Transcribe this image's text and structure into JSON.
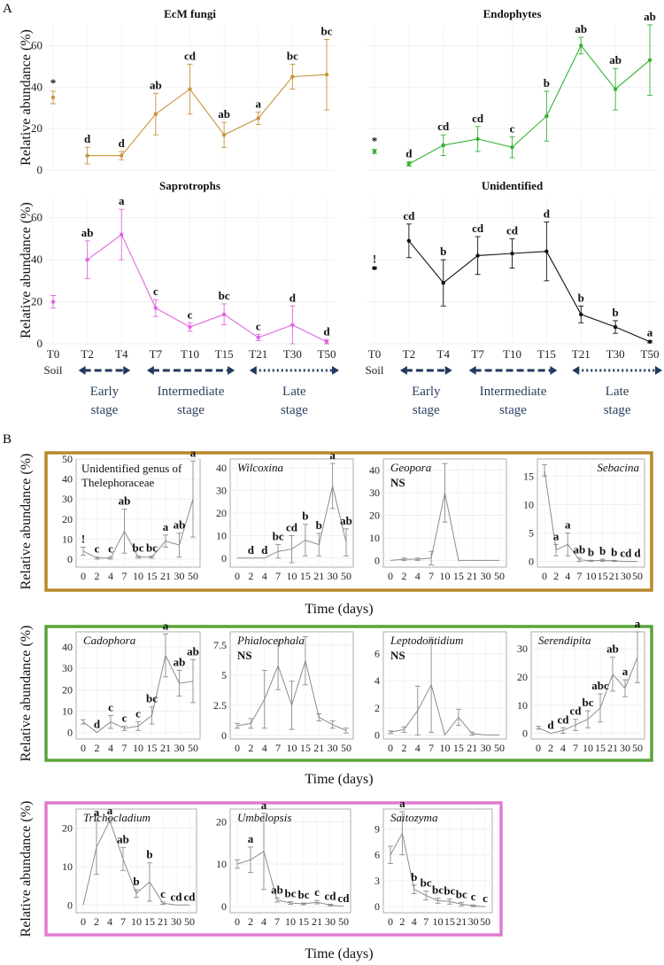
{
  "panel_labels": {
    "a": "A",
    "b": "B"
  },
  "colors": {
    "ecm": "#c8923a",
    "endo": "#33b233",
    "sap": "#e066e0",
    "unid": "#111111",
    "stage_arrow": "#213a5e",
    "box_ecm": "#b8892a",
    "box_endo": "#5aa33a",
    "box_sap": "#e07ad0",
    "gray_line": "#8c8c8c"
  },
  "panel_a": {
    "ylabel": "Relative abundance (%)",
    "x_ticks": [
      "T0",
      "T2",
      "T4",
      "T7",
      "T10",
      "T15",
      "T21",
      "T30",
      "T50"
    ],
    "soil_label": "Soil",
    "stages": [
      {
        "line1": "Early",
        "line2": "stage"
      },
      {
        "line1": "Intermediate",
        "line2": "stage"
      },
      {
        "line1": "Late",
        "line2": "stage"
      }
    ]
  },
  "panel_b": {
    "ylabel": "Relative abundance (%)",
    "xlabel": "Time (days)",
    "x_ticks": [
      "0",
      "2",
      "4",
      "7",
      "10",
      "15",
      "21",
      "30",
      "50"
    ]
  },
  "chart_data": [
    {
      "type": "line",
      "title": "EcM fungi",
      "panel": "A",
      "ylim": [
        0,
        70
      ],
      "yticks": [
        0,
        20,
        40,
        60
      ],
      "categories": [
        "T0",
        "T2",
        "T4",
        "T7",
        "T10",
        "T15",
        "T21",
        "T30",
        "T50"
      ],
      "values": [
        35,
        7,
        7,
        27,
        39,
        17,
        25,
        45,
        46
      ],
      "errors": [
        3,
        4,
        2,
        10,
        12,
        6,
        3,
        6,
        17
      ],
      "labels": [
        "*",
        "d",
        "d",
        "ab",
        "cd",
        "ab",
        "a",
        "bc",
        "bc"
      ]
    },
    {
      "type": "line",
      "title": "Endophytes",
      "panel": "A",
      "ylim": [
        0,
        70
      ],
      "yticks": [
        0,
        20,
        40,
        60
      ],
      "categories": [
        "T0",
        "T2",
        "T4",
        "T7",
        "T10",
        "T15",
        "T21",
        "T30",
        "T50"
      ],
      "values": [
        9,
        3,
        12,
        15,
        11,
        26,
        60,
        39,
        53
      ],
      "errors": [
        1,
        1,
        5,
        6,
        5,
        12,
        4,
        10,
        17
      ],
      "labels": [
        "*",
        "d",
        "cd",
        "cd",
        "c",
        "b",
        "ab",
        "ab",
        "ab"
      ]
    },
    {
      "type": "line",
      "title": "Saprotrophs",
      "panel": "A",
      "ylim": [
        0,
        70
      ],
      "yticks": [
        0,
        20,
        40,
        60
      ],
      "categories": [
        "T0",
        "T2",
        "T4",
        "T7",
        "T10",
        "T15",
        "T21",
        "T30",
        "T50"
      ],
      "values": [
        20,
        40,
        52,
        17,
        8,
        14,
        3,
        9,
        1
      ],
      "errors": [
        3,
        9,
        12,
        4,
        2,
        5,
        1.5,
        9,
        1
      ],
      "labels": [
        "",
        "ab",
        "a",
        "c",
        "c",
        "bc",
        "c",
        "d",
        "d"
      ]
    },
    {
      "type": "line",
      "title": "Unidentified",
      "panel": "A",
      "ylim": [
        0,
        70
      ],
      "yticks": [
        0,
        20,
        40,
        60
      ],
      "categories": [
        "T0",
        "T2",
        "T4",
        "T7",
        "T10",
        "T15",
        "T21",
        "T30",
        "T50"
      ],
      "values": [
        36,
        49,
        29,
        42,
        43,
        44,
        14,
        8,
        1
      ],
      "errors": [
        0.5,
        8,
        11,
        9,
        7,
        14,
        4,
        3,
        0.5
      ],
      "labels": [
        "!",
        "cd",
        "b",
        "cd",
        "cd",
        "d",
        "b",
        "b",
        "a"
      ]
    },
    {
      "type": "line",
      "title": "Unidentified genus of Thelephoraceae",
      "panel": "B",
      "group": "ecm",
      "ylim": [
        -4,
        50
      ],
      "yticks": [
        0,
        10,
        20,
        30,
        40,
        50
      ],
      "categories": [
        "0",
        "2",
        "4",
        "7",
        "10",
        "15",
        "21",
        "30",
        "50"
      ],
      "values": [
        4,
        0.5,
        0.5,
        14,
        1,
        1,
        9,
        7,
        30
      ],
      "errors": [
        2,
        0.5,
        0.5,
        11,
        0.5,
        0.5,
        3,
        6,
        19
      ],
      "labels": [
        "!",
        "c",
        "c",
        "ab",
        "bc",
        "bc",
        "a",
        "ab",
        "a"
      ]
    },
    {
      "type": "line",
      "title": "Wilcoxina",
      "panel": "B",
      "group": "ecm",
      "ylim": [
        -4,
        44
      ],
      "yticks": [
        0,
        10,
        20,
        30,
        40
      ],
      "categories": [
        "0",
        "2",
        "4",
        "7",
        "10",
        "15",
        "21",
        "30",
        "50"
      ],
      "values": [
        0,
        0,
        0,
        3,
        4,
        8,
        6,
        32,
        7
      ],
      "errors": [
        0,
        0,
        0,
        3,
        6,
        7,
        5,
        10,
        6
      ],
      "labels": [
        "",
        "d",
        "d",
        "bc",
        "cd",
        "b",
        "b",
        "a",
        "ab"
      ]
    },
    {
      "type": "line",
      "title": "Geopora",
      "note": "NS",
      "panel": "B",
      "group": "ecm",
      "ylim": [
        -3,
        45
      ],
      "yticks": [
        0,
        10,
        20,
        30,
        40
      ],
      "categories": [
        "0",
        "2",
        "4",
        "7",
        "10",
        "15",
        "21",
        "30",
        "50"
      ],
      "values": [
        0,
        0.5,
        0.5,
        1,
        30,
        0,
        0,
        0,
        0
      ],
      "errors": [
        0,
        0.5,
        0.5,
        3,
        13,
        0,
        0,
        0,
        0
      ],
      "labels": [
        "",
        "",
        "",
        "",
        "",
        "",
        "",
        "",
        ""
      ]
    },
    {
      "type": "line",
      "title": "Sebacina",
      "panel": "B",
      "group": "ecm",
      "ylim": [
        -1,
        18
      ],
      "yticks": [
        0,
        5,
        10,
        15
      ],
      "categories": [
        "0",
        "2",
        "4",
        "7",
        "10",
        "15",
        "21",
        "30",
        "50"
      ],
      "values": [
        16,
        2,
        3,
        0.3,
        0.1,
        0.2,
        0.1,
        0,
        0
      ],
      "errors": [
        1,
        1,
        2,
        0.3,
        0.1,
        0.2,
        0.1,
        0,
        0
      ],
      "labels": [
        "",
        "a",
        "a",
        "ab",
        "b",
        "b",
        "b",
        "cd",
        "d"
      ]
    },
    {
      "type": "line",
      "title": "Cadophora",
      "panel": "B",
      "group": "endo",
      "ylim": [
        -3,
        47
      ],
      "yticks": [
        0,
        10,
        20,
        30,
        40
      ],
      "categories": [
        "0",
        "2",
        "4",
        "7",
        "10",
        "15",
        "21",
        "30",
        "50"
      ],
      "values": [
        5,
        0,
        5,
        2,
        3,
        8,
        36,
        23,
        24
      ],
      "errors": [
        1,
        0,
        3,
        1,
        2,
        4,
        10,
        6,
        10
      ],
      "labels": [
        "",
        "d",
        "c",
        "c",
        "c",
        "bc",
        "a",
        "ab",
        "ab"
      ]
    },
    {
      "type": "line",
      "title": "Phialocephala",
      "note": "NS",
      "panel": "B",
      "group": "endo",
      "ylim": [
        -0.3,
        8.6
      ],
      "yticks": [
        0.0,
        2.5,
        5.0,
        7.5
      ],
      "categories": [
        "0",
        "2",
        "4",
        "7",
        "10",
        "15",
        "21",
        "30",
        "50"
      ],
      "values": [
        0.8,
        1,
        3,
        5.8,
        2.5,
        6.2,
        1.5,
        0.9,
        0.4
      ],
      "errors": [
        0.2,
        0.4,
        2.4,
        2.0,
        2.0,
        2.0,
        0.3,
        0.3,
        0.2
      ],
      "labels": [
        "",
        "",
        "",
        "",
        "",
        "",
        "",
        "",
        ""
      ]
    },
    {
      "type": "line",
      "title": "Leptodontidium",
      "note": "NS",
      "panel": "B",
      "group": "endo",
      "ylim": [
        -0.3,
        7.6
      ],
      "yticks": [
        0,
        2,
        4,
        6
      ],
      "categories": [
        "0",
        "2",
        "4",
        "7",
        "10",
        "15",
        "21",
        "30",
        "50"
      ],
      "values": [
        0.2,
        0.4,
        1.8,
        3.7,
        0,
        1.3,
        0.1,
        0,
        0
      ],
      "errors": [
        0.1,
        0.2,
        1.8,
        3.5,
        0,
        0.6,
        0.1,
        0,
        0
      ],
      "labels": [
        "",
        "",
        "",
        "",
        "",
        "",
        "",
        "",
        ""
      ]
    },
    {
      "type": "line",
      "title": "Serendipita",
      "panel": "B",
      "group": "endo",
      "ylim": [
        -2,
        36
      ],
      "yticks": [
        0,
        10,
        20,
        30
      ],
      "categories": [
        "0",
        "2",
        "4",
        "7",
        "10",
        "15",
        "21",
        "30",
        "50"
      ],
      "values": [
        2,
        0,
        1,
        3,
        5,
        9,
        21,
        16,
        27
      ],
      "errors": [
        0.5,
        0,
        1,
        2,
        3,
        5,
        6,
        3,
        9
      ],
      "labels": [
        "",
        "d",
        "cd",
        "cd",
        "bc",
        "abc",
        "ab",
        "a",
        "a"
      ]
    },
    {
      "type": "line",
      "title": "Trichocladium",
      "panel": "B",
      "group": "sap",
      "ylim": [
        -2,
        25
      ],
      "yticks": [
        0,
        10,
        20
      ],
      "categories": [
        "0",
        "2",
        "4",
        "7",
        "10",
        "15",
        "21",
        "30",
        "50"
      ],
      "values": [
        0,
        15,
        22,
        12,
        3,
        6,
        0.5,
        0,
        0
      ],
      "errors": [
        0,
        7,
        0.5,
        3,
        1,
        5,
        0.3,
        0,
        0
      ],
      "labels": [
        "",
        "a",
        "a",
        "ab",
        "b",
        "b",
        "c",
        "cd",
        "cd"
      ]
    },
    {
      "type": "line",
      "title": "Umbelopsis",
      "panel": "B",
      "group": "sap",
      "ylim": [
        -1.5,
        23
      ],
      "yticks": [
        0,
        10,
        20
      ],
      "categories": [
        "0",
        "2",
        "4",
        "7",
        "10",
        "15",
        "21",
        "30",
        "50"
      ],
      "values": [
        10,
        11,
        13,
        1.5,
        0.8,
        0.6,
        1,
        0.3,
        0
      ],
      "errors": [
        1,
        3,
        9,
        0.5,
        0.3,
        0.2,
        0.4,
        0.2,
        0
      ],
      "labels": [
        "",
        "a",
        "a",
        "ab",
        "bc",
        "bc",
        "c",
        "cd",
        "cd"
      ]
    },
    {
      "type": "line",
      "title": "Saitozyma",
      "panel": "B",
      "group": "sap",
      "ylim": [
        -0.7,
        11.3
      ],
      "yticks": [
        0,
        3,
        6,
        9
      ],
      "categories": [
        "0",
        "2",
        "4",
        "7",
        "10",
        "15",
        "21",
        "30",
        "50"
      ],
      "values": [
        6,
        8.5,
        2,
        1.3,
        0.7,
        0.6,
        0.3,
        0.1,
        0
      ],
      "errors": [
        1,
        2.5,
        0.5,
        0.5,
        0.3,
        0.3,
        0.2,
        0.1,
        0
      ],
      "labels": [
        "",
        "a",
        "b",
        "bc",
        "bc",
        "bc",
        "bc",
        "c",
        "c"
      ]
    }
  ]
}
